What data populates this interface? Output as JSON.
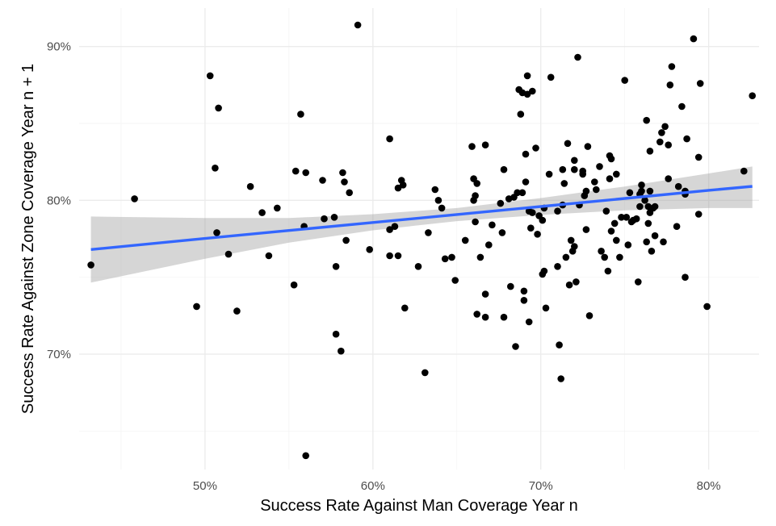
{
  "chart_data": {
    "type": "scatter",
    "xlabel": "Success Rate Against Man Coverage Year n",
    "ylabel": "Success Rate Against Zone Coverage Year n + 1",
    "xlim": [
      0.425,
      0.83
    ],
    "ylim": [
      0.625,
      0.925
    ],
    "x_ticks": [
      {
        "value": 0.5,
        "label": "50%"
      },
      {
        "value": 0.6,
        "label": "60%"
      },
      {
        "value": 0.7,
        "label": "70%"
      },
      {
        "value": 0.8,
        "label": "80%"
      }
    ],
    "y_ticks": [
      {
        "value": 0.7,
        "label": "70%"
      },
      {
        "value": 0.8,
        "label": "80%"
      },
      {
        "value": 0.9,
        "label": "90%"
      }
    ],
    "grid": true,
    "colors": {
      "points": "#000000",
      "fit_line": "#3366ff",
      "ribbon": "#999999"
    },
    "trend": {
      "x": [
        0.432,
        0.5,
        0.55,
        0.6,
        0.65,
        0.7,
        0.75,
        0.8,
        0.826
      ],
      "y": [
        0.768,
        0.7752,
        0.7804,
        0.7856,
        0.7908,
        0.796,
        0.8012,
        0.8065,
        0.8091
      ],
      "lower": [
        0.7465,
        0.762,
        0.7725,
        0.7805,
        0.7865,
        0.7905,
        0.7935,
        0.795,
        0.795
      ],
      "upper": [
        0.7895,
        0.7885,
        0.7885,
        0.791,
        0.795,
        0.8015,
        0.809,
        0.8175,
        0.822
      ]
    },
    "points": [
      [
        0.432,
        0.758
      ],
      [
        0.458,
        0.801
      ],
      [
        0.495,
        0.731
      ],
      [
        0.503,
        0.881
      ],
      [
        0.506,
        0.821
      ],
      [
        0.507,
        0.779
      ],
      [
        0.508,
        0.86
      ],
      [
        0.514,
        0.765
      ],
      [
        0.519,
        0.728
      ],
      [
        0.527,
        0.809
      ],
      [
        0.534,
        0.792
      ],
      [
        0.538,
        0.764
      ],
      [
        0.543,
        0.795
      ],
      [
        0.553,
        0.745
      ],
      [
        0.554,
        0.819
      ],
      [
        0.557,
        0.856
      ],
      [
        0.559,
        0.783
      ],
      [
        0.56,
        0.818
      ],
      [
        0.56,
        0.634
      ],
      [
        0.57,
        0.813
      ],
      [
        0.571,
        0.788
      ],
      [
        0.577,
        0.789
      ],
      [
        0.578,
        0.757
      ],
      [
        0.578,
        0.713
      ],
      [
        0.581,
        0.702
      ],
      [
        0.582,
        0.818
      ],
      [
        0.583,
        0.812
      ],
      [
        0.584,
        0.774
      ],
      [
        0.586,
        0.805
      ],
      [
        0.591,
        0.914
      ],
      [
        0.598,
        0.768
      ],
      [
        0.61,
        0.764
      ],
      [
        0.61,
        0.781
      ],
      [
        0.61,
        0.84
      ],
      [
        0.613,
        0.783
      ],
      [
        0.615,
        0.764
      ],
      [
        0.615,
        0.808
      ],
      [
        0.617,
        0.813
      ],
      [
        0.618,
        0.81
      ],
      [
        0.619,
        0.73
      ],
      [
        0.627,
        0.757
      ],
      [
        0.631,
        0.688
      ],
      [
        0.633,
        0.779
      ],
      [
        0.637,
        0.807
      ],
      [
        0.639,
        0.8
      ],
      [
        0.641,
        0.795
      ],
      [
        0.643,
        0.762
      ],
      [
        0.647,
        0.763
      ],
      [
        0.649,
        0.748
      ],
      [
        0.655,
        0.774
      ],
      [
        0.659,
        0.835
      ],
      [
        0.66,
        0.8
      ],
      [
        0.66,
        0.814
      ],
      [
        0.661,
        0.786
      ],
      [
        0.661,
        0.803
      ],
      [
        0.662,
        0.726
      ],
      [
        0.662,
        0.811
      ],
      [
        0.664,
        0.763
      ],
      [
        0.667,
        0.836
      ],
      [
        0.667,
        0.724
      ],
      [
        0.667,
        0.739
      ],
      [
        0.669,
        0.771
      ],
      [
        0.671,
        0.784
      ],
      [
        0.676,
        0.798
      ],
      [
        0.677,
        0.779
      ],
      [
        0.678,
        0.82
      ],
      [
        0.678,
        0.724
      ],
      [
        0.681,
        0.801
      ],
      [
        0.682,
        0.744
      ],
      [
        0.684,
        0.802
      ],
      [
        0.685,
        0.705
      ],
      [
        0.686,
        0.805
      ],
      [
        0.687,
        0.872
      ],
      [
        0.688,
        0.856
      ],
      [
        0.689,
        0.805
      ],
      [
        0.689,
        0.87
      ],
      [
        0.69,
        0.741
      ],
      [
        0.69,
        0.735
      ],
      [
        0.691,
        0.812
      ],
      [
        0.691,
        0.83
      ],
      [
        0.692,
        0.869
      ],
      [
        0.692,
        0.881
      ],
      [
        0.693,
        0.721
      ],
      [
        0.693,
        0.793
      ],
      [
        0.694,
        0.782
      ],
      [
        0.695,
        0.792
      ],
      [
        0.695,
        0.871
      ],
      [
        0.697,
        0.834
      ],
      [
        0.698,
        0.778
      ],
      [
        0.699,
        0.79
      ],
      [
        0.701,
        0.752
      ],
      [
        0.701,
        0.787
      ],
      [
        0.702,
        0.754
      ],
      [
        0.702,
        0.795
      ],
      [
        0.703,
        0.73
      ],
      [
        0.705,
        0.817
      ],
      [
        0.706,
        0.88
      ],
      [
        0.71,
        0.793
      ],
      [
        0.71,
        0.757
      ],
      [
        0.711,
        0.706
      ],
      [
        0.712,
        0.684
      ],
      [
        0.713,
        0.797
      ],
      [
        0.713,
        0.82
      ],
      [
        0.714,
        0.811
      ],
      [
        0.715,
        0.763
      ],
      [
        0.716,
        0.837
      ],
      [
        0.717,
        0.745
      ],
      [
        0.718,
        0.774
      ],
      [
        0.719,
        0.767
      ],
      [
        0.72,
        0.77
      ],
      [
        0.72,
        0.82
      ],
      [
        0.72,
        0.826
      ],
      [
        0.721,
        0.747
      ],
      [
        0.722,
        0.893
      ],
      [
        0.723,
        0.797
      ],
      [
        0.725,
        0.819
      ],
      [
        0.725,
        0.817
      ],
      [
        0.726,
        0.803
      ],
      [
        0.727,
        0.781
      ],
      [
        0.727,
        0.806
      ],
      [
        0.728,
        0.835
      ],
      [
        0.729,
        0.725
      ],
      [
        0.732,
        0.812
      ],
      [
        0.733,
        0.807
      ],
      [
        0.735,
        0.822
      ],
      [
        0.736,
        0.767
      ],
      [
        0.738,
        0.763
      ],
      [
        0.739,
        0.793
      ],
      [
        0.74,
        0.754
      ],
      [
        0.741,
        0.814
      ],
      [
        0.741,
        0.829
      ],
      [
        0.742,
        0.78
      ],
      [
        0.742,
        0.827
      ],
      [
        0.744,
        0.785
      ],
      [
        0.745,
        0.817
      ],
      [
        0.745,
        0.774
      ],
      [
        0.747,
        0.763
      ],
      [
        0.748,
        0.789
      ],
      [
        0.75,
        0.878
      ],
      [
        0.751,
        0.789
      ],
      [
        0.752,
        0.771
      ],
      [
        0.753,
        0.805
      ],
      [
        0.754,
        0.786
      ],
      [
        0.755,
        0.787
      ],
      [
        0.757,
        0.788
      ],
      [
        0.758,
        0.747
      ],
      [
        0.759,
        0.804
      ],
      [
        0.759,
        0.796
      ],
      [
        0.76,
        0.806
      ],
      [
        0.76,
        0.81
      ],
      [
        0.762,
        0.8
      ],
      [
        0.763,
        0.773
      ],
      [
        0.763,
        0.852
      ],
      [
        0.764,
        0.785
      ],
      [
        0.764,
        0.796
      ],
      [
        0.765,
        0.792
      ],
      [
        0.765,
        0.832
      ],
      [
        0.765,
        0.806
      ],
      [
        0.766,
        0.767
      ],
      [
        0.767,
        0.795
      ],
      [
        0.768,
        0.796
      ],
      [
        0.768,
        0.777
      ],
      [
        0.771,
        0.838
      ],
      [
        0.772,
        0.844
      ],
      [
        0.773,
        0.773
      ],
      [
        0.774,
        0.848
      ],
      [
        0.776,
        0.836
      ],
      [
        0.776,
        0.814
      ],
      [
        0.777,
        0.875
      ],
      [
        0.778,
        0.887
      ],
      [
        0.781,
        0.783
      ],
      [
        0.782,
        0.809
      ],
      [
        0.784,
        0.861
      ],
      [
        0.786,
        0.75
      ],
      [
        0.786,
        0.804
      ],
      [
        0.786,
        0.806
      ],
      [
        0.787,
        0.84
      ],
      [
        0.791,
        0.905
      ],
      [
        0.794,
        0.791
      ],
      [
        0.794,
        0.828
      ],
      [
        0.795,
        0.876
      ],
      [
        0.799,
        0.731
      ],
      [
        0.821,
        0.819
      ],
      [
        0.826,
        0.868
      ]
    ]
  }
}
